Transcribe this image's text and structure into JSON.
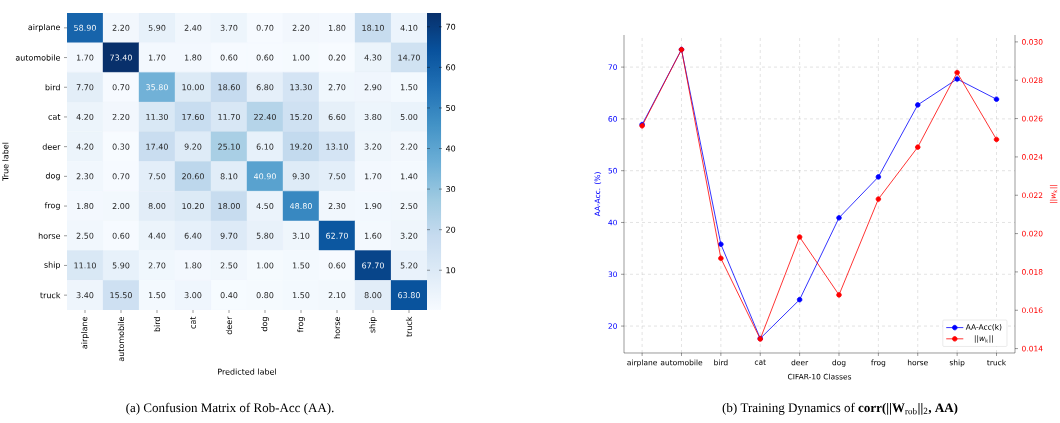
{
  "chart_data": [
    {
      "type": "heatmap",
      "xlabel": "Predicted label",
      "ylabel": "True label",
      "categories": [
        "airplane",
        "automobile",
        "bird",
        "cat",
        "deer",
        "dog",
        "frog",
        "horse",
        "ship",
        "truck"
      ],
      "y_categories": [
        "airplane",
        "automobile",
        "bird",
        "cat",
        "deer",
        "dog",
        "frog",
        "horse",
        "ship",
        "truck"
      ],
      "cells": [
        [
          58.9,
          2.2,
          5.9,
          2.4,
          3.7,
          0.7,
          2.2,
          1.8,
          18.1,
          4.1
        ],
        [
          1.7,
          73.4,
          1.7,
          1.8,
          0.6,
          0.6,
          1.0,
          0.2,
          4.3,
          14.7
        ],
        [
          7.7,
          0.7,
          35.8,
          10.0,
          18.6,
          6.8,
          13.3,
          2.7,
          2.9,
          1.5
        ],
        [
          4.2,
          2.2,
          11.3,
          17.6,
          11.7,
          22.4,
          15.2,
          6.6,
          3.8,
          5.0
        ],
        [
          4.2,
          0.3,
          17.4,
          9.2,
          25.1,
          6.1,
          19.2,
          13.1,
          3.2,
          2.2
        ],
        [
          2.3,
          0.7,
          7.5,
          20.6,
          8.1,
          40.9,
          9.3,
          7.5,
          1.7,
          1.4
        ],
        [
          1.8,
          2.0,
          8.0,
          10.2,
          18.0,
          4.5,
          48.8,
          2.3,
          1.9,
          2.5
        ],
        [
          2.5,
          0.6,
          4.4,
          6.4,
          9.7,
          5.8,
          3.1,
          62.7,
          1.6,
          3.2
        ],
        [
          11.1,
          5.9,
          2.7,
          1.8,
          2.5,
          1.0,
          1.5,
          0.6,
          67.7,
          5.2
        ],
        [
          3.4,
          15.5,
          1.5,
          3.0,
          0.4,
          0.8,
          1.5,
          2.1,
          8.0,
          63.8
        ]
      ],
      "cell_labels": [
        [
          "58.90",
          "2.20",
          "5.90",
          "2.40",
          "3.70",
          "0.70",
          "2.20",
          "1.80",
          "18.10",
          "4.10"
        ],
        [
          "1.70",
          "73.40",
          "1.70",
          "1.80",
          "0.60",
          "0.60",
          "1.00",
          "0.20",
          "4.30",
          "14.70"
        ],
        [
          "7.70",
          "0.70",
          "35.80",
          "10.00",
          "18.60",
          "6.80",
          "13.30",
          "2.70",
          "2.90",
          "1.50"
        ],
        [
          "4.20",
          "2.20",
          "11.30",
          "17.60",
          "11.70",
          "22.40",
          "15.20",
          "6.60",
          "3.80",
          "5.00"
        ],
        [
          "4.20",
          "0.30",
          "17.40",
          "9.20",
          "25.10",
          "6.10",
          "19.20",
          "13.10",
          "3.20",
          "2.20"
        ],
        [
          "2.30",
          "0.70",
          "7.50",
          "20.60",
          "8.10",
          "40.90",
          "9.30",
          "7.50",
          "1.70",
          "1.40"
        ],
        [
          "1.80",
          "2.00",
          "8.00",
          "10.20",
          "18.00",
          "4.50",
          "48.80",
          "2.30",
          "1.90",
          "2.50"
        ],
        [
          "2.50",
          "0.60",
          "4.40",
          "6.40",
          "9.70",
          "5.80",
          "3.10",
          "62.70",
          "1.60",
          "3.20"
        ],
        [
          "11.10",
          "5.90",
          "2.70",
          "1.80",
          "2.50",
          "1.00",
          "1.50",
          "0.60",
          "67.70",
          "5.20"
        ],
        [
          "3.40",
          "15.50",
          "1.50",
          "3.00",
          "0.40",
          "0.80",
          "1.50",
          "2.10",
          "8.00",
          "63.80"
        ]
      ],
      "clim": [
        0.2,
        73.4
      ],
      "cticks": [
        10,
        20,
        30,
        40,
        50,
        60,
        70
      ],
      "annotations": [
        "(a) Confusion Matrix of Rob-Acc (AA)."
      ]
    },
    {
      "type": "line",
      "xlabel": "CIFAR-10 Classes",
      "ylabel": "AA-Acc. (%)",
      "y2label": "||*w*$_{k}$||",
      "categories": [
        "airplane",
        "automobile",
        "bird",
        "cat",
        "deer",
        "dog",
        "frog",
        "horse",
        "ship",
        "truck"
      ],
      "series": [
        {
          "name": "AA-Acc(k)",
          "color": "#0000ff",
          "values": [
            58.9,
            73.4,
            35.8,
            17.6,
            25.1,
            40.9,
            48.8,
            62.7,
            67.7,
            63.8
          ]
        },
        {
          "name": "||*w*$_{k}$||",
          "color": "#ff0000",
          "axis": "y2",
          "values": [
            0.02562,
            0.0296,
            0.01871,
            0.0145,
            0.01982,
            0.0168,
            0.0218,
            0.02451,
            0.0284,
            0.02491
          ]
        }
      ],
      "ylim": [
        14.8,
        76.2
      ],
      "yticks": [
        20,
        30,
        40,
        50,
        60,
        70
      ],
      "y2lim": [
        0.01377,
        0.03036
      ],
      "y2ticks": [
        {
          "value": 0.014,
          "label": "0.014"
        },
        {
          "value": 0.016,
          "label": "0.016"
        },
        {
          "value": 0.018,
          "label": "0.018"
        },
        {
          "value": 0.02,
          "label": "0.020"
        },
        {
          "value": 0.022,
          "label": "0.022"
        },
        {
          "value": 0.024,
          "label": "0.024"
        },
        {
          "value": 0.026,
          "label": "0.026"
        },
        {
          "value": 0.028,
          "label": "0.028"
        },
        {
          "value": 0.03,
          "label": "0.030"
        }
      ],
      "legend": "bottom right",
      "grid": true,
      "marker": "circle",
      "line_style": "solid",
      "annotations": [
        "(b) Training Dynamics of **corr(||W**$_{rob}$**||**$_{2}$**, AA)**"
      ]
    }
  ]
}
